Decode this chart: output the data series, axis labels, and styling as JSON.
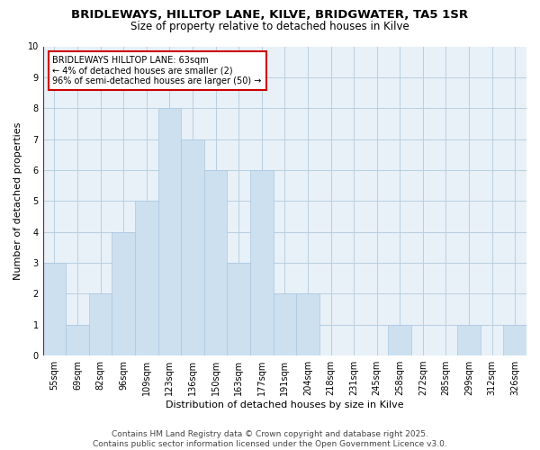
{
  "title1": "BRIDLEWAYS, HILLTOP LANE, KILVE, BRIDGWATER, TA5 1SR",
  "title2": "Size of property relative to detached houses in Kilve",
  "xlabel": "Distribution of detached houses by size in Kilve",
  "ylabel": "Number of detached properties",
  "bin_labels": [
    "55sqm",
    "69sqm",
    "82sqm",
    "96sqm",
    "109sqm",
    "123sqm",
    "136sqm",
    "150sqm",
    "163sqm",
    "177sqm",
    "191sqm",
    "204sqm",
    "218sqm",
    "231sqm",
    "245sqm",
    "258sqm",
    "272sqm",
    "285sqm",
    "299sqm",
    "312sqm",
    "326sqm"
  ],
  "bar_heights": [
    3,
    1,
    2,
    4,
    5,
    8,
    7,
    6,
    3,
    6,
    2,
    2,
    0,
    0,
    0,
    1,
    0,
    0,
    1,
    0,
    1
  ],
  "bar_color": "#cce0f0",
  "bar_edgecolor": "#aac8e0",
  "grid_color": "#b8cfe0",
  "plot_bg_color": "#e8f0f8",
  "vline_color": "#cc0000",
  "annotation_text": "BRIDLEWAYS HILLTOP LANE: 63sqm\n← 4% of detached houses are smaller (2)\n96% of semi-detached houses are larger (50) →",
  "annotation_box_edgecolor": "#cc0000",
  "ylim": [
    0,
    10
  ],
  "yticks": [
    0,
    1,
    2,
    3,
    4,
    5,
    6,
    7,
    8,
    9,
    10
  ],
  "footer_text": "Contains HM Land Registry data © Crown copyright and database right 2025.\nContains public sector information licensed under the Open Government Licence v3.0.",
  "title_fontsize": 9.5,
  "subtitle_fontsize": 8.5,
  "axis_label_fontsize": 8,
  "tick_fontsize": 7,
  "annotation_fontsize": 7,
  "footer_fontsize": 6.5
}
